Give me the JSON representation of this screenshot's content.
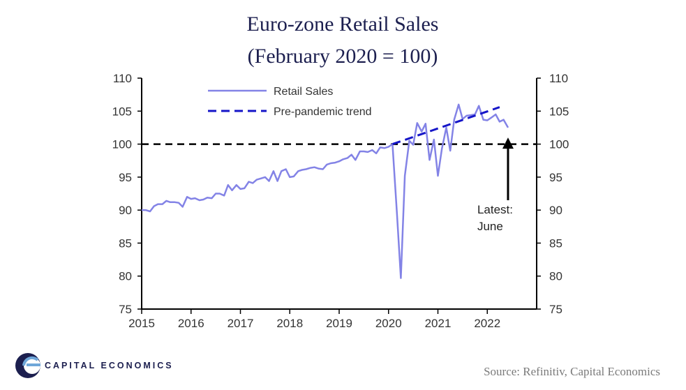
{
  "chart_data": {
    "type": "line",
    "title": "Euro-zone Retail Sales",
    "subtitle": "(February 2020 = 100)",
    "x_tick_labels": [
      "2015",
      "2016",
      "2017",
      "2018",
      "2019",
      "2020",
      "2021",
      "2022"
    ],
    "x_tick_values": [
      2015,
      2016,
      2017,
      2018,
      2019,
      2020,
      2021,
      2022
    ],
    "xlim": [
      2015,
      2023
    ],
    "ylim": [
      75,
      110
    ],
    "y_ticks": [
      75,
      80,
      85,
      90,
      95,
      100,
      105,
      110
    ],
    "y_axis_right": true,
    "grid": false,
    "legend_position": "top-left",
    "reference_line": {
      "y": 100,
      "style": "dashed",
      "color": "#000000"
    },
    "series": [
      {
        "name": "Retail Sales",
        "style": "solid",
        "color": "#8383e6",
        "points": [
          [
            2015.0,
            90.0
          ],
          [
            2015.08,
            90.0
          ],
          [
            2015.17,
            89.8
          ],
          [
            2015.25,
            90.6
          ],
          [
            2015.33,
            90.9
          ],
          [
            2015.42,
            90.9
          ],
          [
            2015.5,
            91.4
          ],
          [
            2015.58,
            91.2
          ],
          [
            2015.67,
            91.2
          ],
          [
            2015.75,
            91.1
          ],
          [
            2015.83,
            90.5
          ],
          [
            2015.92,
            92.0
          ],
          [
            2016.0,
            91.7
          ],
          [
            2016.08,
            91.8
          ],
          [
            2016.17,
            91.5
          ],
          [
            2016.25,
            91.6
          ],
          [
            2016.33,
            91.9
          ],
          [
            2016.42,
            91.8
          ],
          [
            2016.5,
            92.5
          ],
          [
            2016.58,
            92.5
          ],
          [
            2016.67,
            92.2
          ],
          [
            2016.75,
            93.8
          ],
          [
            2016.83,
            93.0
          ],
          [
            2016.92,
            93.8
          ],
          [
            2017.0,
            93.2
          ],
          [
            2017.08,
            93.3
          ],
          [
            2017.17,
            94.3
          ],
          [
            2017.25,
            94.1
          ],
          [
            2017.33,
            94.6
          ],
          [
            2017.42,
            94.8
          ],
          [
            2017.5,
            95.0
          ],
          [
            2017.58,
            94.4
          ],
          [
            2017.67,
            95.9
          ],
          [
            2017.75,
            94.4
          ],
          [
            2017.83,
            95.9
          ],
          [
            2017.92,
            96.2
          ],
          [
            2018.0,
            95.0
          ],
          [
            2018.08,
            95.1
          ],
          [
            2018.17,
            95.9
          ],
          [
            2018.25,
            96.1
          ],
          [
            2018.33,
            96.2
          ],
          [
            2018.42,
            96.4
          ],
          [
            2018.5,
            96.5
          ],
          [
            2018.58,
            96.3
          ],
          [
            2018.67,
            96.2
          ],
          [
            2018.75,
            96.9
          ],
          [
            2018.83,
            97.1
          ],
          [
            2018.92,
            97.2
          ],
          [
            2019.0,
            97.4
          ],
          [
            2019.08,
            97.7
          ],
          [
            2019.17,
            97.9
          ],
          [
            2019.25,
            98.4
          ],
          [
            2019.33,
            97.6
          ],
          [
            2019.42,
            98.9
          ],
          [
            2019.5,
            98.9
          ],
          [
            2019.58,
            98.8
          ],
          [
            2019.67,
            99.1
          ],
          [
            2019.75,
            98.6
          ],
          [
            2019.83,
            99.5
          ],
          [
            2019.92,
            99.4
          ],
          [
            2020.0,
            99.6
          ],
          [
            2020.08,
            100.0
          ],
          [
            2020.17,
            89.5
          ],
          [
            2020.25,
            79.7
          ],
          [
            2020.33,
            95.2
          ],
          [
            2020.42,
            100.5
          ],
          [
            2020.5,
            99.9
          ],
          [
            2020.58,
            103.2
          ],
          [
            2020.67,
            101.9
          ],
          [
            2020.75,
            103.1
          ],
          [
            2020.83,
            97.6
          ],
          [
            2020.92,
            100.7
          ],
          [
            2021.0,
            95.2
          ],
          [
            2021.08,
            99.3
          ],
          [
            2021.17,
            102.5
          ],
          [
            2021.25,
            99.0
          ],
          [
            2021.33,
            103.7
          ],
          [
            2021.42,
            106.0
          ],
          [
            2021.5,
            103.8
          ],
          [
            2021.58,
            104.3
          ],
          [
            2021.67,
            104.4
          ],
          [
            2021.75,
            104.5
          ],
          [
            2021.83,
            105.8
          ],
          [
            2021.92,
            103.7
          ],
          [
            2022.0,
            103.6
          ],
          [
            2022.08,
            104.0
          ],
          [
            2022.17,
            104.5
          ],
          [
            2022.25,
            103.4
          ],
          [
            2022.33,
            103.7
          ],
          [
            2022.42,
            102.5
          ]
        ]
      },
      {
        "name": "Pre-pandemic trend",
        "style": "dashed",
        "color": "#1515c8",
        "points": [
          [
            2020.08,
            100.0
          ],
          [
            2022.25,
            105.6
          ]
        ]
      }
    ],
    "annotations": [
      {
        "text_lines": [
          "Latest:",
          "June"
        ],
        "arrow_to": [
          2022.42,
          101.0
        ],
        "arrow_from_y": 91.5,
        "x": 2022.42
      }
    ]
  },
  "source_text": "Source: Refinitiv, Capital Economics",
  "brand": {
    "name": "CAPITAL ECONOMICS",
    "logo": "capital-economics-logo",
    "colors": {
      "navy": "#1c1f4f",
      "light_blue": "#6fa7d9"
    }
  }
}
